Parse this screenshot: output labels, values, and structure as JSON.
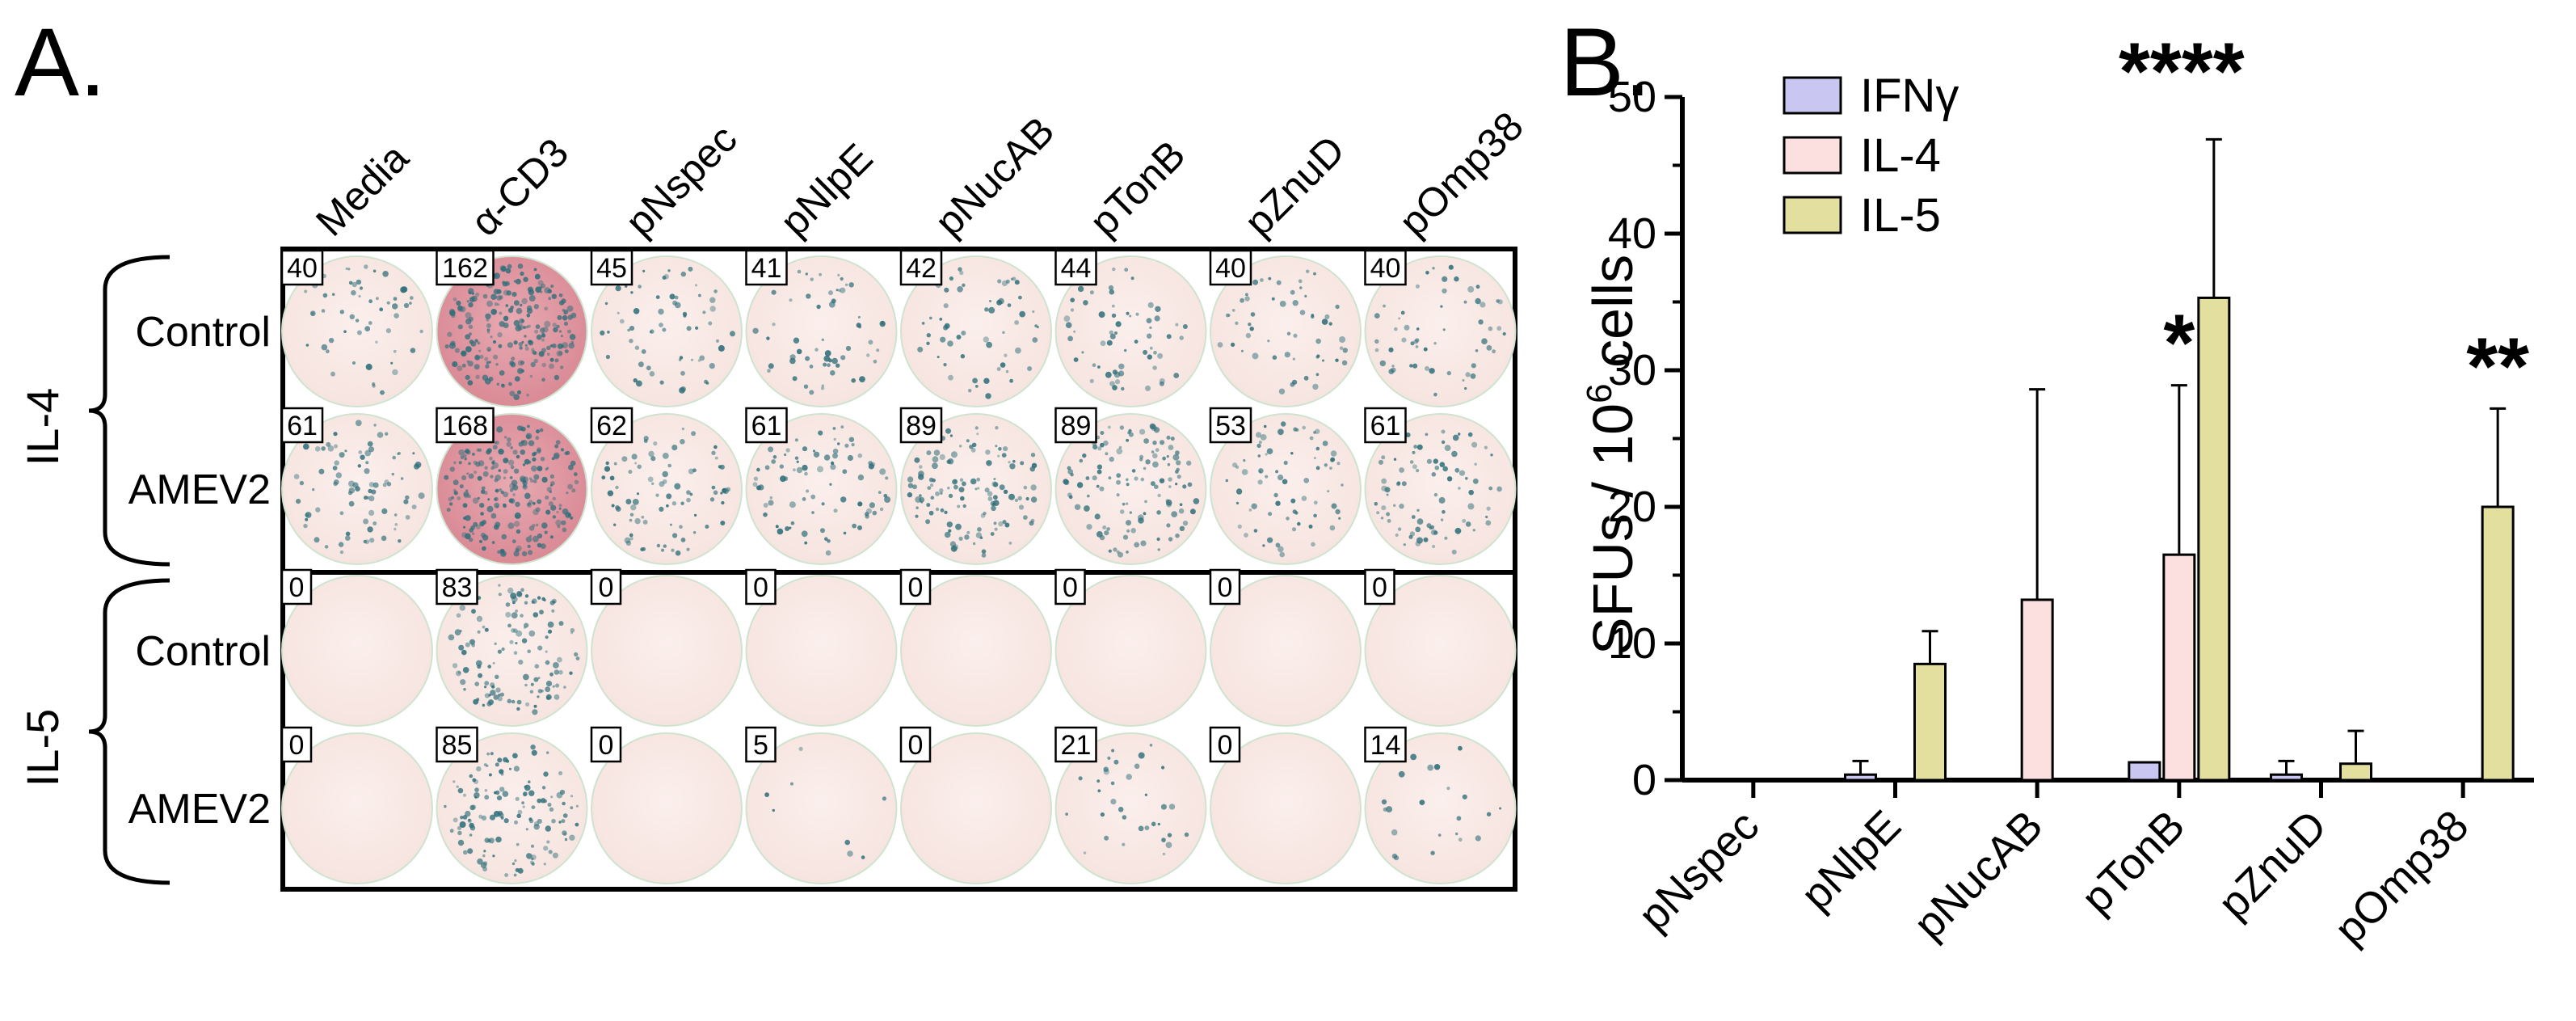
{
  "panel_a": {
    "label": "A.",
    "columns": [
      "Media",
      "α-CD3",
      "pNspec",
      "pNlpE",
      "pNucAB",
      "pTonB",
      "pZnuD",
      "pOmp38"
    ],
    "groups": [
      {
        "cytokine": "IL-4",
        "rows": [
          {
            "label": "Control",
            "counts": [
              "40",
              "162",
              "45",
              "41",
              "42",
              "44",
              "40",
              "40"
            ]
          },
          {
            "label": "AMEV2",
            "counts": [
              "61",
              "168",
              "62",
              "61",
              "89",
              "89",
              "53",
              "61"
            ]
          }
        ]
      },
      {
        "cytokine": "IL-5",
        "rows": [
          {
            "label": "Control",
            "counts": [
              "0",
              "83",
              "0",
              "0",
              "0",
              "0",
              "0",
              "0"
            ]
          },
          {
            "label": "AMEV2",
            "counts": [
              "0",
              "85",
              "0",
              "5",
              "0",
              "21",
              "0",
              "14"
            ]
          }
        ]
      }
    ],
    "colors": {
      "well_pink": "#f6e4df",
      "well_red": "#d98a95",
      "spot": "#2f6f7a",
      "border": "#000000"
    }
  },
  "panel_b": {
    "label": "B."
  },
  "chart_data": {
    "type": "bar",
    "categories": [
      "pNspec",
      "pNlpE",
      "pNucAB",
      "pTonB",
      "pZnuD",
      "pOmp38"
    ],
    "series": [
      {
        "name": "IFNγ",
        "color": "#c9c7f2",
        "values": [
          0,
          0.4,
          0,
          1.3,
          0.4,
          0
        ],
        "errors": [
          0,
          1.0,
          0,
          0,
          1.0,
          0
        ]
      },
      {
        "name": "IL-4",
        "color": "#fce0e0",
        "values": [
          0,
          0,
          13.2,
          16.5,
          0,
          0
        ],
        "errors": [
          0,
          0,
          15.4,
          12.4,
          0,
          0
        ]
      },
      {
        "name": "IL-5",
        "color": "#e3df9f",
        "values": [
          0,
          8.5,
          0,
          35.3,
          1.2,
          20.0
        ],
        "errors": [
          0,
          2.4,
          0,
          11.6,
          2.4,
          7.2
        ]
      }
    ],
    "significance": [
      {
        "category": "pTonB",
        "series": "IL-4",
        "label": "*"
      },
      {
        "category": "pTonB",
        "series": "IL-5",
        "label": "****"
      },
      {
        "category": "pOmp38",
        "series": "IL-5",
        "label": "**"
      }
    ],
    "ylabel_main": "SFUs / 10",
    "ylabel_sup": "6",
    "ylabel_tail": " cells",
    "ylim": [
      0,
      50
    ],
    "yticks": [
      "0",
      "10",
      "20",
      "30",
      "40",
      "50"
    ],
    "legend": "top-left",
    "grid": false
  }
}
